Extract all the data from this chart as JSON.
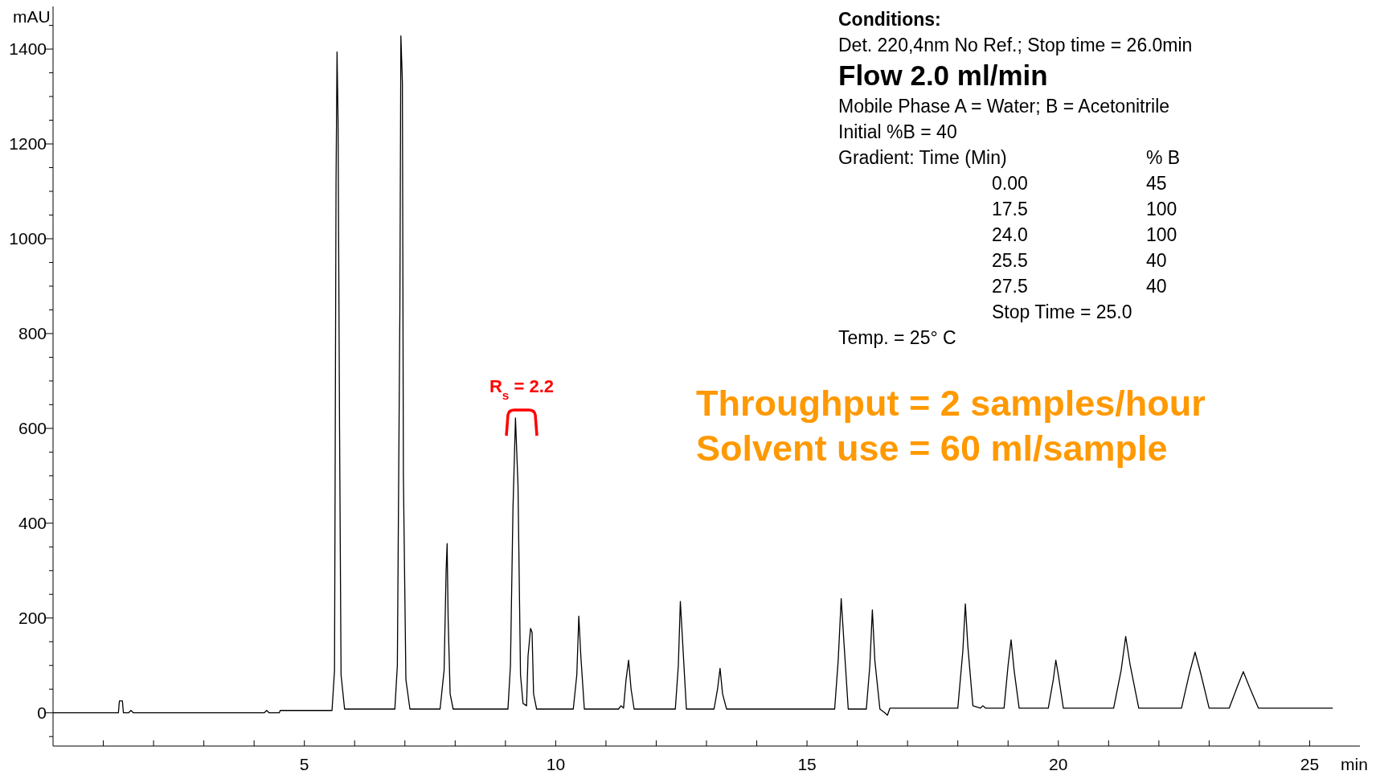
{
  "chart_data": {
    "type": "line",
    "xlabel": "min",
    "ylabel": "mAU",
    "xlim": [
      0,
      26
    ],
    "ylim": [
      -70,
      1490
    ],
    "xticks": [
      {
        "value": 1,
        "label": null
      },
      {
        "value": 2,
        "label": null
      },
      {
        "value": 3,
        "label": null
      },
      {
        "value": 4,
        "label": null
      },
      5,
      {
        "value": 6,
        "label": null
      },
      {
        "value": 7,
        "label": null
      },
      {
        "value": 8,
        "label": null
      },
      {
        "value": 9,
        "label": null
      },
      10,
      {
        "value": 11,
        "label": null
      },
      {
        "value": 12,
        "label": null
      },
      {
        "value": 13,
        "label": null
      },
      {
        "value": 14,
        "label": null
      },
      15,
      {
        "value": 16,
        "label": null
      },
      {
        "value": 17,
        "label": null
      },
      {
        "value": 18,
        "label": null
      },
      {
        "value": 19,
        "label": null
      },
      20,
      {
        "value": 21,
        "label": null
      },
      {
        "value": 22,
        "label": null
      },
      {
        "value": 23,
        "label": null
      },
      {
        "value": 24,
        "label": null
      },
      25
    ],
    "yticks": [
      {
        "value": -50,
        "label": null
      },
      0,
      {
        "value": 50,
        "label": null
      },
      {
        "value": 100,
        "label": null
      },
      {
        "value": 150,
        "label": null
      },
      200,
      {
        "value": 250,
        "label": null
      },
      {
        "value": 300,
        "label": null
      },
      {
        "value": 350,
        "label": null
      },
      400,
      {
        "value": 450,
        "label": null
      },
      {
        "value": 500,
        "label": null
      },
      {
        "value": 550,
        "label": null
      },
      600,
      {
        "value": 650,
        "label": null
      },
      {
        "value": 700,
        "label": null
      },
      {
        "value": 750,
        "label": null
      },
      800,
      {
        "value": 850,
        "label": null
      },
      {
        "value": 900,
        "label": null
      },
      {
        "value": 950,
        "label": null
      },
      1000,
      {
        "value": 1050,
        "label": null
      },
      {
        "value": 1100,
        "label": null
      },
      {
        "value": 1150,
        "label": null
      },
      1200,
      {
        "value": 1250,
        "label": null
      },
      {
        "value": 1300,
        "label": null
      },
      {
        "value": 1350,
        "label": null
      },
      1400,
      {
        "value": 1450,
        "label": null
      }
    ],
    "grid": false,
    "marker": "none",
    "line_style": "solid",
    "series": [
      {
        "color": "#000000",
        "x": [
          0,
          1.3,
          1.32,
          1.38,
          1.4,
          1.5,
          1.55,
          1.6,
          4.2,
          4.25,
          4.3,
          4.5,
          4.52,
          5.55,
          5.6,
          5.63,
          5.65,
          5.67,
          5.7,
          5.73,
          5.8,
          6.8,
          6.85,
          6.9,
          6.92,
          6.95,
          6.97,
          7.02,
          7.1,
          7.7,
          7.78,
          7.82,
          7.84,
          7.86,
          7.9,
          7.96,
          9.05,
          9.1,
          9.15,
          9.2,
          9.25,
          9.3,
          9.35,
          9.42,
          9.45,
          9.5,
          9.53,
          9.56,
          9.62,
          10.35,
          10.42,
          10.46,
          10.5,
          10.57,
          11.25,
          11.3,
          11.35,
          11.4,
          11.45,
          11.5,
          11.56,
          12.38,
          12.44,
          12.48,
          12.52,
          12.6,
          13.15,
          13.22,
          13.27,
          13.32,
          13.4,
          15.55,
          15.62,
          15.68,
          15.74,
          15.82,
          16.18,
          16.25,
          16.3,
          16.35,
          16.45,
          16.55,
          16.6,
          16.65,
          18.0,
          18.1,
          18.15,
          18.2,
          18.3,
          18.45,
          18.5,
          18.55,
          18.92,
          19.0,
          19.06,
          19.12,
          19.22,
          19.8,
          19.9,
          19.95,
          20.0,
          20.1,
          21.1,
          21.25,
          21.34,
          21.43,
          21.6,
          22.45,
          22.6,
          22.72,
          22.84,
          23.0,
          23.4,
          23.56,
          23.68,
          23.8,
          23.98,
          25.46
        ],
        "values": [
          0,
          0,
          25,
          25,
          0,
          0,
          5,
          0,
          0,
          5,
          0,
          0,
          5,
          5,
          90,
          1120,
          1394,
          1250,
          600,
          80,
          8,
          8,
          100,
          850,
          1428,
          1330,
          500,
          70,
          8,
          8,
          90,
          300,
          357,
          200,
          40,
          8,
          8,
          100,
          430,
          622,
          480,
          80,
          20,
          15,
          120,
          178,
          170,
          40,
          8,
          8,
          80,
          204,
          120,
          8,
          8,
          15,
          10,
          70,
          111,
          50,
          8,
          8,
          100,
          235,
          160,
          8,
          8,
          50,
          94,
          40,
          8,
          8,
          110,
          241,
          140,
          8,
          8,
          100,
          217,
          110,
          8,
          0,
          -5,
          10,
          10,
          130,
          230,
          140,
          15,
          10,
          15,
          10,
          10,
          100,
          154,
          90,
          10,
          10,
          70,
          111,
          80,
          10,
          10,
          90,
          161,
          100,
          10,
          10,
          80,
          128,
          80,
          10,
          10,
          55,
          87,
          55,
          10,
          10
        ]
      }
    ],
    "annotations": [
      "Conditions:",
      "Det. 220,4nm No Ref.; Stop time = 26.0min",
      "Flow 2.0 ml/min",
      "Mobile Phase A = Water; B = Acetonitrile",
      "Initial %B = 40",
      "Gradient:  Time (Min)",
      "% B",
      "0.00",
      "45",
      "17.5",
      "100",
      "24.0",
      "100",
      "25.5",
      "40",
      "27.5",
      "40",
      "Stop Time = 25.0",
      "Temp. = 25° C",
      "Throughput = 2 samples/hour",
      "Solvent use = 60 ml/sample",
      "R$_{s}$ = 2.2"
    ]
  }
}
